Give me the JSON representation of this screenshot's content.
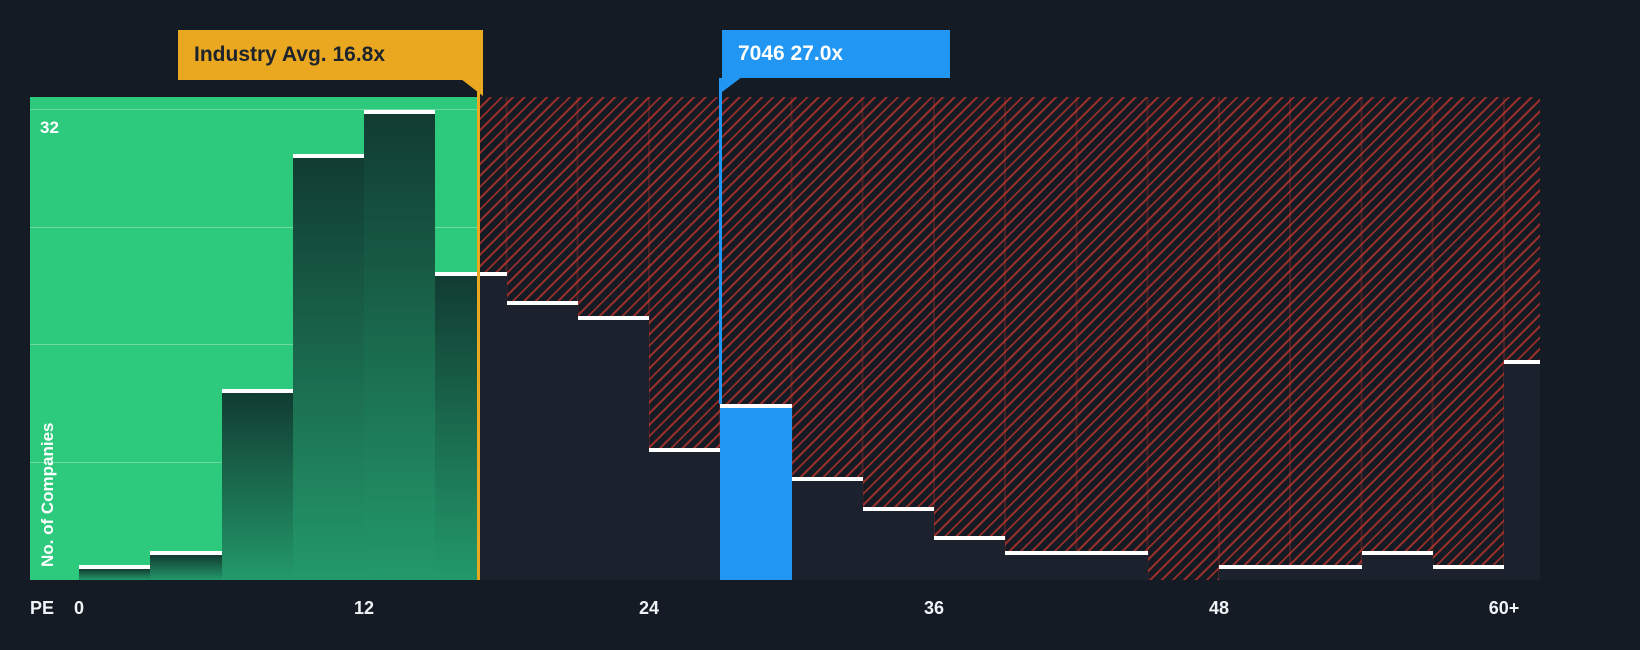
{
  "chart_data": {
    "type": "bar",
    "subtype": "histogram",
    "title": "",
    "xlabel": "PE",
    "ylabel": "No. of Companies",
    "y_max_label": "32",
    "ylim": [
      0,
      32
    ],
    "gridline_values": [
      8,
      16,
      24,
      32
    ],
    "bin_size_pe": 3,
    "x_ticks": [
      {
        "label": "0",
        "pe": 0
      },
      {
        "label": "12",
        "pe": 12
      },
      {
        "label": "24",
        "pe": 24
      },
      {
        "label": "36",
        "pe": 36
      },
      {
        "label": "48",
        "pe": 48
      },
      {
        "label": "60+",
        "pe": 60
      }
    ],
    "bins": [
      {
        "pe_from": 0,
        "pe_to": 3,
        "count": 1
      },
      {
        "pe_from": 3,
        "pe_to": 6,
        "count": 2
      },
      {
        "pe_from": 6,
        "pe_to": 9,
        "count": 13
      },
      {
        "pe_from": 9,
        "pe_to": 12,
        "count": 29
      },
      {
        "pe_from": 12,
        "pe_to": 15,
        "count": 32
      },
      {
        "pe_from": 15,
        "pe_to": 18,
        "count": 21
      },
      {
        "pe_from": 18,
        "pe_to": 21,
        "count": 19
      },
      {
        "pe_from": 21,
        "pe_to": 24,
        "count": 18
      },
      {
        "pe_from": 24,
        "pe_to": 27,
        "count": 9
      },
      {
        "pe_from": 27,
        "pe_to": 30,
        "count": 12,
        "highlight": true
      },
      {
        "pe_from": 30,
        "pe_to": 33,
        "count": 7
      },
      {
        "pe_from": 33,
        "pe_to": 36,
        "count": 5
      },
      {
        "pe_from": 36,
        "pe_to": 39,
        "count": 3
      },
      {
        "pe_from": 39,
        "pe_to": 42,
        "count": 2
      },
      {
        "pe_from": 42,
        "pe_to": 45,
        "count": 2
      },
      {
        "pe_from": 45,
        "pe_to": 48,
        "count": 0
      },
      {
        "pe_from": 48,
        "pe_to": 51,
        "count": 1
      },
      {
        "pe_from": 51,
        "pe_to": 54,
        "count": 1
      },
      {
        "pe_from": 54,
        "pe_to": 57,
        "count": 2
      },
      {
        "pe_from": 57,
        "pe_to": 60,
        "count": 1
      },
      {
        "pe_from": 60,
        "pe_to": null,
        "count": 15,
        "label": "60+"
      }
    ],
    "industry_avg": {
      "label": "Industry Avg. 16.8x",
      "pe": 16.8
    },
    "company_marker": {
      "label": "7046 27.0x",
      "company": "7046",
      "pe": 27.0
    },
    "legend_position": "none",
    "colors": {
      "background": "#151b24",
      "green_zone": "#2dc97c",
      "green_bar_top": "#113c32",
      "green_bar_bottom": "#23996a",
      "hatch_red": "#ee3c2d",
      "dark_bar": "#1b222d",
      "highlight_blue": "#2196f3",
      "industry_avg_yellow": "#e9a820",
      "bar_cap_white": "#ffffff"
    }
  }
}
